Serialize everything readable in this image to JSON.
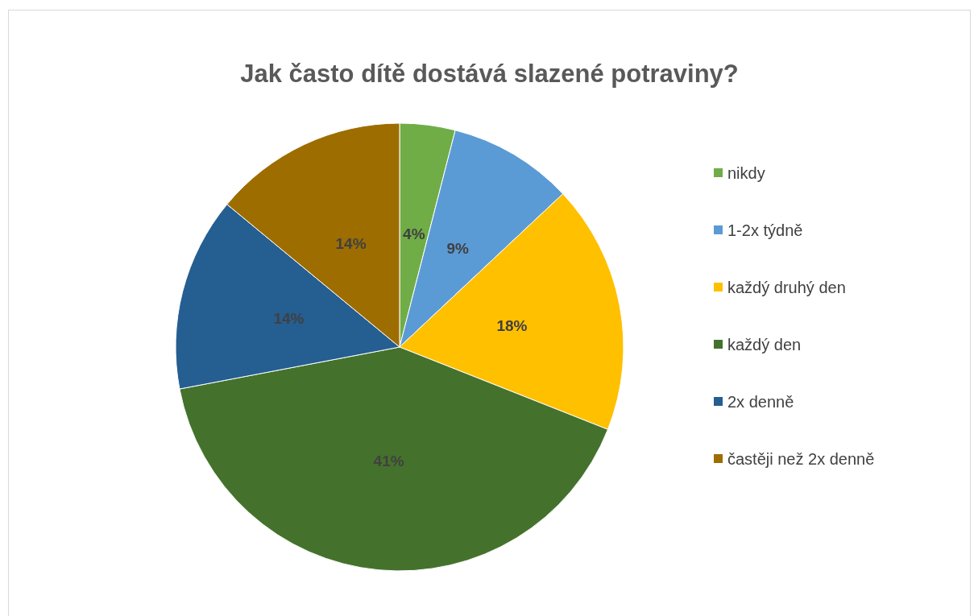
{
  "chart_data": {
    "type": "pie",
    "title": "Jak často dítě dostává slazené potraviny?",
    "categories": [
      "nikdy",
      "1-2x týdně",
      "každý druhý den",
      "každý den",
      "2x denně",
      "častěji než 2x denně"
    ],
    "values": [
      4,
      9,
      18,
      41,
      14,
      14
    ],
    "colors": [
      "#70ad47",
      "#5b9bd5",
      "#ffc000",
      "#44722c",
      "#255e91",
      "#9e6d00"
    ],
    "value_labels": [
      "4%",
      "9%",
      "18%",
      "41%",
      "14%",
      "14%"
    ],
    "legend": "right"
  }
}
